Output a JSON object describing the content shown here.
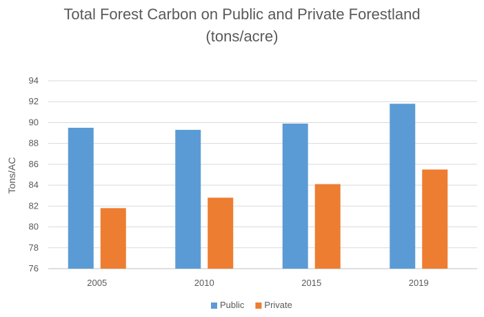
{
  "chart_data": {
    "type": "bar",
    "title_lines": [
      "Total Forest Carbon on Public and Private Forestland",
      "(tons/acre)"
    ],
    "xlabel": "",
    "ylabel": "Tons/AC",
    "categories": [
      "2005",
      "2010",
      "2015",
      "2019"
    ],
    "series": [
      {
        "name": "Public",
        "values": [
          89.5,
          89.3,
          89.9,
          91.8
        ],
        "color": "#5B9BD5"
      },
      {
        "name": "Private",
        "values": [
          81.8,
          82.8,
          84.1,
          85.5
        ],
        "color": "#ED7D31"
      }
    ],
    "ylim": [
      76,
      94
    ],
    "yticks": [
      76,
      78,
      80,
      82,
      84,
      86,
      88,
      90,
      92,
      94
    ],
    "grid": true,
    "legend_position": "bottom"
  }
}
